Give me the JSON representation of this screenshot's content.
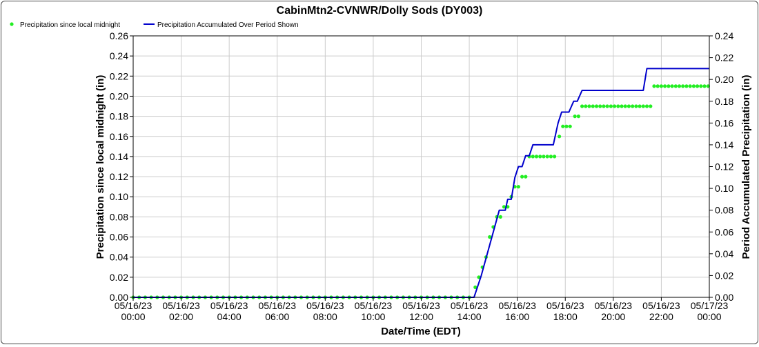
{
  "chart_data": {
    "type": "line",
    "title": "CabinMtn2-CVNWR/Dolly Sods (DY003)",
    "xlabel": "Date/Time (EDT)",
    "ylabel_left": "Precipitation since local midnight (in)",
    "ylabel_right": "Period Accumulated Precipitation (in)",
    "x_unit": "hours since 05/16/23 00:00",
    "x_range": [
      0,
      24
    ],
    "ylim_left": [
      0,
      0.26
    ],
    "ylim_right": [
      0,
      0.24
    ],
    "grid": true,
    "legend_position": "top-left",
    "x_ticks": [
      {
        "date": "05/16/23",
        "time": "00:00"
      },
      {
        "date": "05/16/23",
        "time": "02:00"
      },
      {
        "date": "05/16/23",
        "time": "04:00"
      },
      {
        "date": "05/16/23",
        "time": "06:00"
      },
      {
        "date": "05/16/23",
        "time": "08:00"
      },
      {
        "date": "05/16/23",
        "time": "10:00"
      },
      {
        "date": "05/16/23",
        "time": "12:00"
      },
      {
        "date": "05/16/23",
        "time": "14:00"
      },
      {
        "date": "05/16/23",
        "time": "16:00"
      },
      {
        "date": "05/16/23",
        "time": "18:00"
      },
      {
        "date": "05/16/23",
        "time": "20:00"
      },
      {
        "date": "05/16/23",
        "time": "22:00"
      },
      {
        "date": "05/17/23",
        "time": "00:00"
      }
    ],
    "y_ticks_left": [
      "0.00",
      "0.02",
      "0.04",
      "0.06",
      "0.08",
      "0.10",
      "0.12",
      "0.14",
      "0.16",
      "0.18",
      "0.20",
      "0.22",
      "0.24",
      "0.26"
    ],
    "y_ticks_right": [
      "0.00",
      "0.02",
      "0.04",
      "0.06",
      "0.08",
      "0.10",
      "0.12",
      "0.14",
      "0.16",
      "0.18",
      "0.20",
      "0.22",
      "0.24"
    ],
    "series": [
      {
        "name": "Precipitation since local midnight",
        "axis": "left",
        "style": "dots",
        "color": "#22ee22",
        "points": [
          [
            0,
            0
          ],
          [
            0.25,
            0
          ],
          [
            0.5,
            0
          ],
          [
            0.75,
            0
          ],
          [
            1,
            0
          ],
          [
            1.25,
            0
          ],
          [
            1.5,
            0
          ],
          [
            1.75,
            0
          ],
          [
            2,
            0
          ],
          [
            2.25,
            0
          ],
          [
            2.5,
            0
          ],
          [
            2.75,
            0
          ],
          [
            3,
            0
          ],
          [
            3.25,
            0
          ],
          [
            3.5,
            0
          ],
          [
            3.75,
            0
          ],
          [
            4,
            0
          ],
          [
            4.25,
            0
          ],
          [
            4.5,
            0
          ],
          [
            4.75,
            0
          ],
          [
            5,
            0
          ],
          [
            5.25,
            0
          ],
          [
            5.5,
            0
          ],
          [
            5.75,
            0
          ],
          [
            6,
            0
          ],
          [
            6.25,
            0
          ],
          [
            6.5,
            0
          ],
          [
            6.75,
            0
          ],
          [
            7,
            0
          ],
          [
            7.25,
            0
          ],
          [
            7.5,
            0
          ],
          [
            7.75,
            0
          ],
          [
            8,
            0
          ],
          [
            8.25,
            0
          ],
          [
            8.5,
            0
          ],
          [
            8.75,
            0
          ],
          [
            9,
            0
          ],
          [
            9.25,
            0
          ],
          [
            9.5,
            0
          ],
          [
            9.75,
            0
          ],
          [
            10,
            0
          ],
          [
            10.25,
            0
          ],
          [
            10.5,
            0
          ],
          [
            10.75,
            0
          ],
          [
            11,
            0
          ],
          [
            11.25,
            0
          ],
          [
            11.5,
            0
          ],
          [
            11.75,
            0
          ],
          [
            12,
            0
          ],
          [
            12.25,
            0
          ],
          [
            12.5,
            0
          ],
          [
            12.75,
            0
          ],
          [
            13,
            0
          ],
          [
            13.25,
            0
          ],
          [
            13.5,
            0
          ],
          [
            13.75,
            0
          ],
          [
            14,
            0
          ],
          [
            14.25,
            0.01
          ],
          [
            14.4,
            0.02
          ],
          [
            14.55,
            0.03
          ],
          [
            14.7,
            0.04
          ],
          [
            14.85,
            0.06
          ],
          [
            15,
            0.07
          ],
          [
            15.15,
            0.08
          ],
          [
            15.3,
            0.08
          ],
          [
            15.45,
            0.09
          ],
          [
            15.6,
            0.09
          ],
          [
            15.75,
            0.1
          ],
          [
            15.9,
            0.11
          ],
          [
            16.05,
            0.11
          ],
          [
            16.2,
            0.12
          ],
          [
            16.35,
            0.12
          ],
          [
            16.5,
            0.14
          ],
          [
            16.65,
            0.14
          ],
          [
            16.8,
            0.14
          ],
          [
            16.95,
            0.14
          ],
          [
            17.1,
            0.14
          ],
          [
            17.25,
            0.14
          ],
          [
            17.4,
            0.14
          ],
          [
            17.55,
            0.14
          ],
          [
            17.75,
            0.16
          ],
          [
            17.9,
            0.17
          ],
          [
            18.05,
            0.17
          ],
          [
            18.2,
            0.17
          ],
          [
            18.4,
            0.18
          ],
          [
            18.55,
            0.18
          ],
          [
            18.7,
            0.19
          ],
          [
            18.85,
            0.19
          ],
          [
            19,
            0.19
          ],
          [
            19.15,
            0.19
          ],
          [
            19.3,
            0.19
          ],
          [
            19.45,
            0.19
          ],
          [
            19.6,
            0.19
          ],
          [
            19.75,
            0.19
          ],
          [
            19.9,
            0.19
          ],
          [
            20.05,
            0.19
          ],
          [
            20.2,
            0.19
          ],
          [
            20.35,
            0.19
          ],
          [
            20.5,
            0.19
          ],
          [
            20.65,
            0.19
          ],
          [
            20.8,
            0.19
          ],
          [
            20.95,
            0.19
          ],
          [
            21.1,
            0.19
          ],
          [
            21.25,
            0.19
          ],
          [
            21.4,
            0.19
          ],
          [
            21.55,
            0.19
          ],
          [
            21.7,
            0.21
          ],
          [
            21.85,
            0.21
          ],
          [
            22,
            0.21
          ],
          [
            22.15,
            0.21
          ],
          [
            22.3,
            0.21
          ],
          [
            22.45,
            0.21
          ],
          [
            22.6,
            0.21
          ],
          [
            22.75,
            0.21
          ],
          [
            22.9,
            0.21
          ],
          [
            23.05,
            0.21
          ],
          [
            23.2,
            0.21
          ],
          [
            23.35,
            0.21
          ],
          [
            23.5,
            0.21
          ],
          [
            23.65,
            0.21
          ],
          [
            23.8,
            0.21
          ],
          [
            23.95,
            0.21
          ]
        ]
      },
      {
        "name": "Precipitation Accumulated Over Period Shown",
        "axis": "right",
        "style": "line",
        "color": "#0000cc",
        "points": [
          [
            0,
            0
          ],
          [
            14.2,
            0
          ],
          [
            14.5,
            0.02
          ],
          [
            14.75,
            0.04
          ],
          [
            15,
            0.06
          ],
          [
            15.25,
            0.08
          ],
          [
            15.5,
            0.08
          ],
          [
            15.6,
            0.09
          ],
          [
            15.75,
            0.09
          ],
          [
            15.9,
            0.11
          ],
          [
            16.05,
            0.12
          ],
          [
            16.2,
            0.12
          ],
          [
            16.35,
            0.13
          ],
          [
            16.5,
            0.13
          ],
          [
            16.65,
            0.14
          ],
          [
            17.5,
            0.14
          ],
          [
            17.7,
            0.16
          ],
          [
            17.85,
            0.17
          ],
          [
            18.15,
            0.17
          ],
          [
            18.35,
            0.18
          ],
          [
            18.5,
            0.18
          ],
          [
            18.7,
            0.19
          ],
          [
            21.25,
            0.19
          ],
          [
            21.4,
            0.21
          ],
          [
            24,
            0.21
          ]
        ]
      }
    ]
  }
}
